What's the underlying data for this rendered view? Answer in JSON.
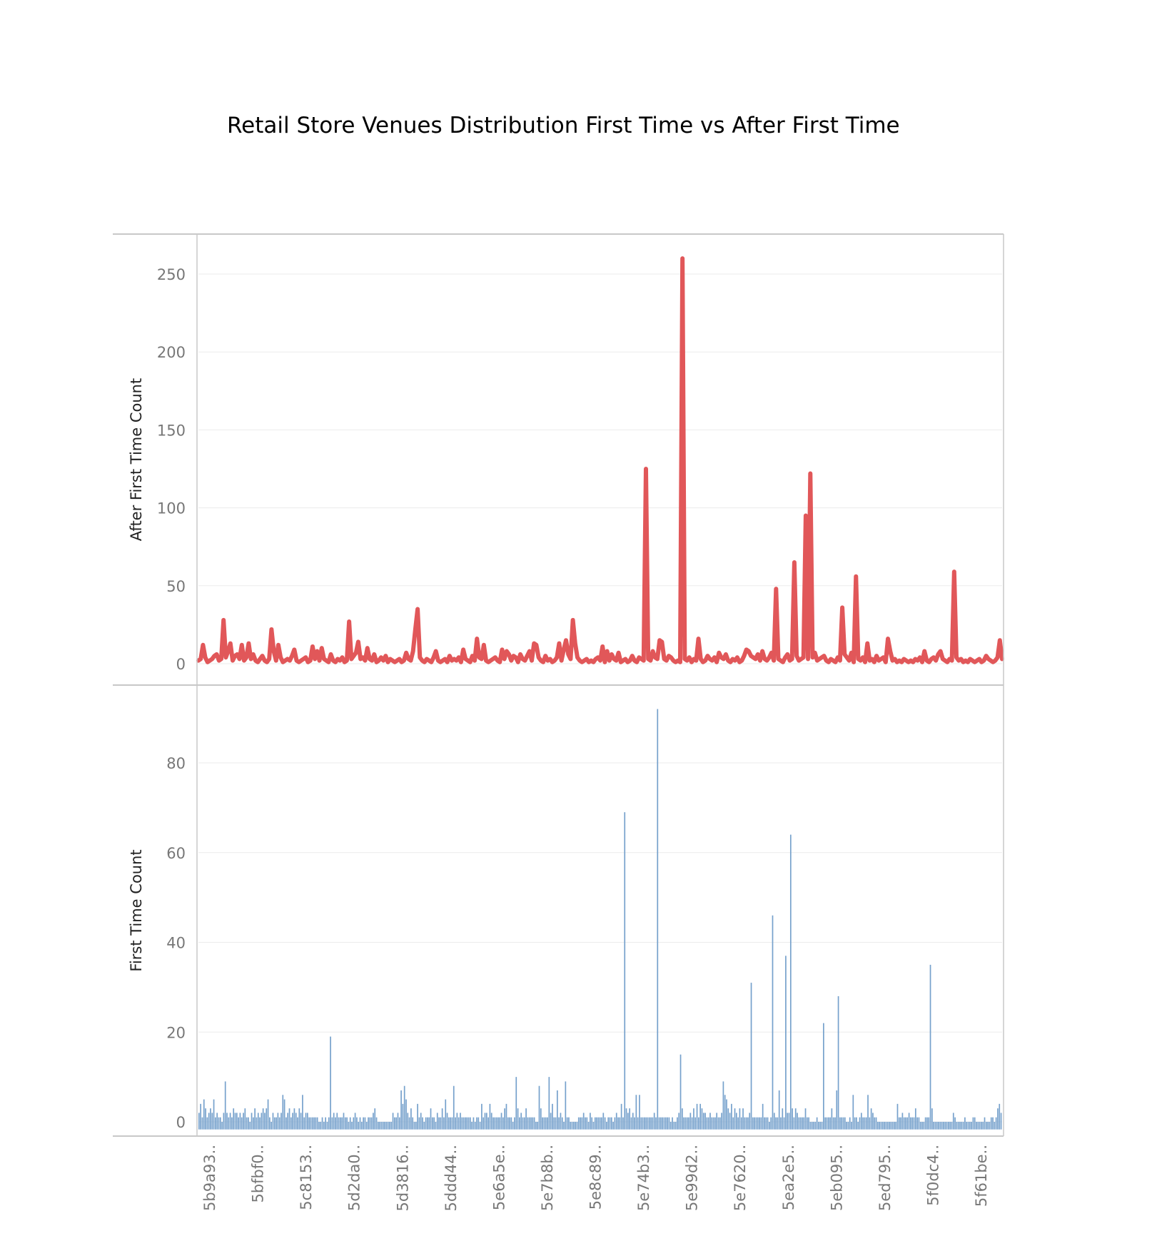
{
  "title": "Retail Store Venues Distribution First Time vs After First Time",
  "colors": {
    "line_series": "#e15759",
    "bar_series": "#76a1cc",
    "grid": "#ebebeb",
    "frame": "#c8c8c8",
    "tick_text": "#777777"
  },
  "chart_data": [
    {
      "type": "line",
      "ylabel": "After First Time Count",
      "ylim": [
        0,
        265
      ],
      "yticks": [
        0,
        50,
        100,
        150,
        200,
        250
      ],
      "grid": true,
      "series": [
        {
          "values": [
            2,
            3,
            12,
            4,
            1,
            2,
            3,
            5,
            6,
            2,
            3,
            28,
            4,
            8,
            13,
            2,
            5,
            6,
            3,
            12,
            2,
            4,
            13,
            3,
            6,
            2,
            1,
            3,
            5,
            2,
            1,
            3,
            22,
            8,
            2,
            12,
            4,
            1,
            2,
            3,
            2,
            5,
            9,
            2,
            1,
            2,
            3,
            4,
            1,
            2,
            11,
            3,
            8,
            2,
            10,
            3,
            2,
            1,
            6,
            2,
            1,
            3,
            2,
            4,
            1,
            2,
            27,
            3,
            5,
            7,
            14,
            3,
            4,
            2,
            10,
            3,
            2,
            6,
            1,
            2,
            4,
            2,
            5,
            1,
            3,
            2,
            1,
            2,
            3,
            1,
            2,
            7,
            3,
            2,
            8,
            22,
            35,
            4,
            2,
            1,
            3,
            2,
            1,
            4,
            8,
            2,
            1,
            2,
            3,
            1,
            5,
            2,
            3,
            2,
            4,
            1,
            9,
            3,
            2,
            1,
            5,
            2,
            16,
            4,
            3,
            12,
            2,
            1,
            2,
            3,
            4,
            2,
            1,
            9,
            3,
            8,
            6,
            2,
            5,
            4,
            1,
            6,
            3,
            2,
            5,
            8,
            2,
            13,
            12,
            4,
            2,
            1,
            5,
            2,
            3,
            1,
            2,
            4,
            13,
            2,
            9,
            15,
            6,
            3,
            28,
            13,
            4,
            2,
            1,
            2,
            3,
            1,
            2,
            1,
            3,
            4,
            2,
            11,
            1,
            8,
            2,
            6,
            3,
            2,
            7,
            1,
            2,
            3,
            1,
            2,
            5,
            2,
            1,
            4,
            3,
            2,
            125,
            3,
            2,
            8,
            4,
            3,
            15,
            14,
            3,
            2,
            5,
            4,
            2,
            1,
            2,
            1,
            260,
            3,
            2,
            4,
            1,
            3,
            2,
            16,
            3,
            1,
            2,
            5,
            3,
            2,
            4,
            1,
            7,
            4,
            3,
            6,
            2,
            1,
            3,
            2,
            4,
            1,
            2,
            5,
            9,
            8,
            5,
            4,
            3,
            6,
            2,
            8,
            3,
            2,
            4,
            7,
            2,
            48,
            3,
            2,
            1,
            4,
            6,
            2,
            3,
            65,
            5,
            2,
            3,
            4,
            95,
            3,
            122,
            4,
            7,
            2,
            3,
            4,
            5,
            2,
            1,
            3,
            2,
            1,
            4,
            2,
            36,
            6,
            4,
            2,
            7,
            1,
            56,
            3,
            2,
            4,
            1,
            13,
            2,
            3,
            1,
            5,
            2,
            3,
            4,
            1,
            16,
            8,
            2,
            3,
            1,
            2,
            1,
            3,
            2,
            1,
            2,
            1,
            3,
            2,
            4,
            1,
            8,
            2,
            1,
            3,
            4,
            2,
            6,
            8,
            3,
            2,
            1,
            3,
            2,
            59,
            4,
            2,
            3,
            1,
            2,
            1,
            3,
            2,
            1,
            2,
            3,
            1,
            2,
            5,
            3,
            2,
            1,
            2,
            4,
            15,
            3
          ]
        }
      ]
    },
    {
      "type": "bar",
      "xlabel": "",
      "ylabel": "First Time Count",
      "ylim": [
        -2,
        95
      ],
      "yticks": [
        0,
        20,
        40,
        60,
        80
      ],
      "grid": true,
      "series": [
        {
          "values": [
            2,
            4,
            1,
            5,
            3,
            1,
            2,
            3,
            2,
            5,
            1,
            2,
            1,
            1,
            0,
            2,
            9,
            2,
            1,
            2,
            1,
            3,
            2,
            2,
            1,
            2,
            1,
            2,
            3,
            1,
            1,
            0,
            2,
            1,
            3,
            1,
            2,
            1,
            2,
            3,
            2,
            3,
            5,
            1,
            0,
            2,
            1,
            1,
            2,
            1,
            2,
            6,
            5,
            1,
            2,
            3,
            1,
            2,
            3,
            2,
            1,
            3,
            2,
            6,
            1,
            2,
            2,
            1,
            1,
            1,
            1,
            1,
            1,
            0,
            0,
            1,
            0,
            1,
            0,
            1,
            19,
            1,
            2,
            1,
            2,
            1,
            1,
            1,
            2,
            1,
            1,
            0,
            1,
            0,
            1,
            2,
            1,
            0,
            1,
            0,
            1,
            1,
            0,
            1,
            1,
            1,
            2,
            3,
            1,
            0,
            0,
            0,
            0,
            0,
            0,
            0,
            0,
            0,
            2,
            1,
            1,
            2,
            1,
            7,
            4,
            8,
            5,
            2,
            1,
            3,
            1,
            0,
            0,
            4,
            1,
            2,
            1,
            0,
            1,
            1,
            1,
            3,
            1,
            1,
            0,
            2,
            1,
            1,
            3,
            1,
            5,
            2,
            1,
            1,
            1,
            8,
            1,
            2,
            1,
            2,
            1,
            1,
            1,
            1,
            1,
            1,
            0,
            1,
            0,
            1,
            1,
            0,
            4,
            1,
            2,
            2,
            1,
            4,
            2,
            1,
            1,
            1,
            1,
            1,
            2,
            1,
            3,
            4,
            1,
            1,
            1,
            0,
            1,
            10,
            3,
            1,
            2,
            1,
            1,
            3,
            1,
            1,
            1,
            1,
            1,
            0,
            0,
            8,
            3,
            1,
            1,
            1,
            1,
            10,
            2,
            4,
            1,
            1,
            7,
            1,
            2,
            1,
            0,
            9,
            1,
            1,
            0,
            0,
            0,
            0,
            0,
            1,
            1,
            1,
            2,
            1,
            1,
            0,
            2,
            1,
            0,
            1,
            1,
            1,
            1,
            1,
            2,
            1,
            0,
            1,
            1,
            1,
            0,
            1,
            2,
            1,
            1,
            4,
            1,
            69,
            3,
            2,
            3,
            1,
            2,
            1,
            6,
            1,
            6,
            1,
            1,
            1,
            1,
            1,
            1,
            1,
            1,
            2,
            1,
            92,
            1,
            1,
            1,
            1,
            1,
            1,
            1,
            0,
            1,
            0,
            0,
            1,
            2,
            15,
            3,
            1,
            1,
            1,
            1,
            2,
            1,
            3,
            1,
            4,
            1,
            4,
            3,
            2,
            2,
            1,
            1,
            2,
            1,
            1,
            1,
            2,
            1,
            1,
            2,
            9,
            6,
            5,
            3,
            2,
            4,
            1,
            3,
            2,
            1,
            3,
            1,
            3,
            1,
            1,
            1,
            2,
            31,
            1,
            1,
            1,
            1,
            1,
            1,
            4,
            1,
            1,
            1,
            0,
            1,
            46,
            2,
            1,
            1,
            7,
            1,
            3,
            1,
            37,
            2,
            2,
            64,
            3,
            1,
            3,
            2,
            1,
            1,
            1,
            1,
            3,
            1,
            1,
            0,
            0,
            0,
            0,
            1,
            0,
            0,
            0,
            22,
            1,
            1,
            1,
            1,
            3,
            1,
            1,
            7,
            28,
            1,
            1,
            1,
            1,
            0,
            0,
            1,
            0,
            6,
            1,
            1,
            0,
            1,
            2,
            1,
            1,
            1,
            6,
            1,
            3,
            2,
            1,
            1,
            0,
            0,
            0,
            0,
            0,
            0,
            0,
            0,
            0,
            0,
            0,
            0,
            4,
            1,
            1,
            2,
            1,
            1,
            1,
            2,
            1,
            1,
            1,
            3,
            1,
            1,
            0,
            0,
            0,
            1,
            1,
            1,
            35,
            3,
            0,
            0,
            0,
            0,
            0,
            0,
            0,
            0,
            0,
            0,
            0,
            0,
            2,
            1,
            0,
            0,
            0,
            0,
            0,
            1,
            0,
            0,
            0,
            0,
            1,
            1,
            0,
            0,
            0,
            0,
            0,
            1,
            0,
            0,
            0,
            1,
            1,
            0,
            1,
            3,
            4,
            2
          ]
        }
      ],
      "x_tick_labels": [
        "5b9a93..",
        "5bfbf0..",
        "5c8153..",
        "5d2da0..",
        "5d3816..",
        "5ddd44..",
        "5e6a5e..",
        "5e7b8b..",
        "5e8c89..",
        "5e74b3..",
        "5e99d2..",
        "5e7620..",
        "5ea2e5..",
        "5eb095..",
        "5ed795..",
        "5f0dc4..",
        "5f61be.."
      ]
    }
  ]
}
